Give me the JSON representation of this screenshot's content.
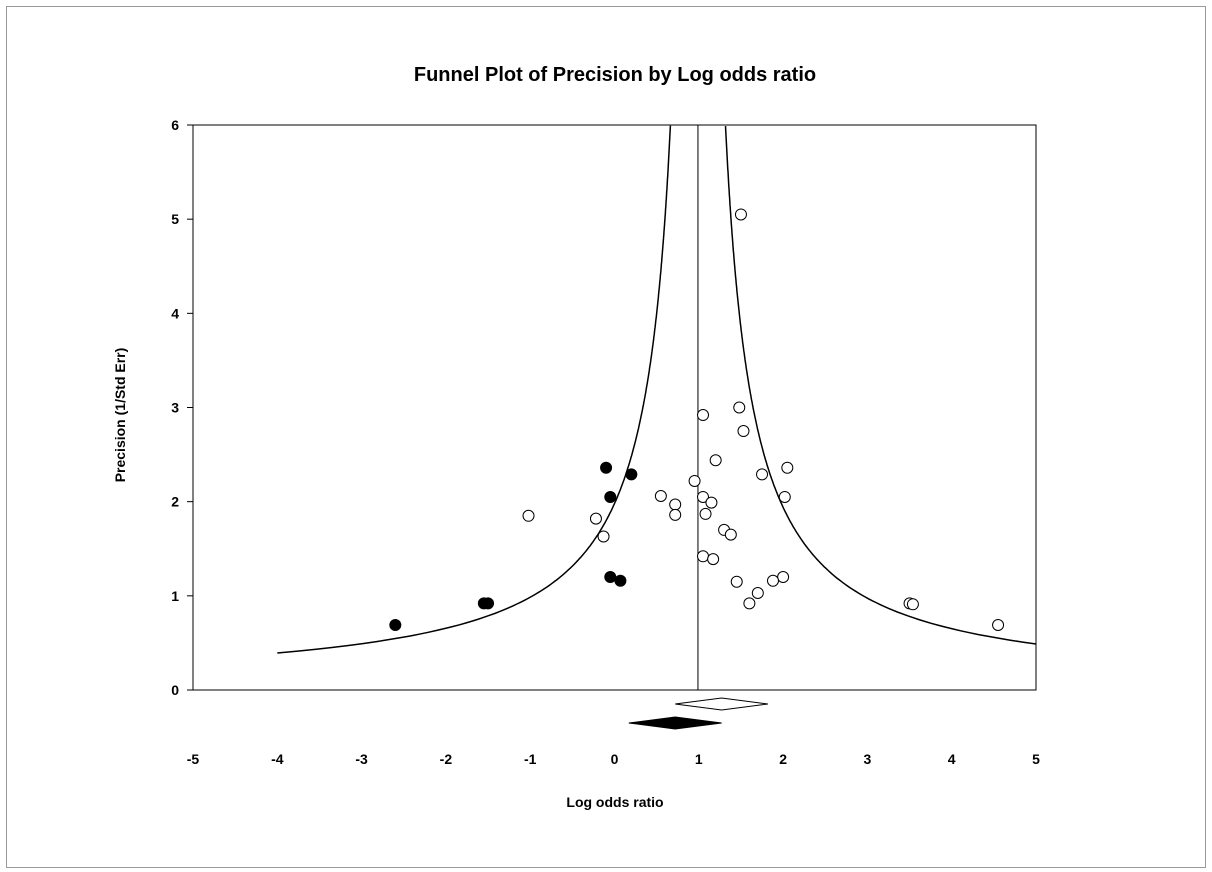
{
  "chart_data": {
    "type": "scatter",
    "title": "Funnel Plot of Precision by Log odds ratio",
    "xlabel": "Log odds ratio",
    "ylabel": "Precision (1/Std Err)",
    "xlim": [
      -5,
      5
    ],
    "ylim": [
      0,
      6
    ],
    "x_ticks": [
      "-5",
      "-4",
      "-3",
      "-2",
      "-1",
      "0",
      "1",
      "2",
      "3",
      "4",
      "5"
    ],
    "y_ticks": [
      "0",
      "1",
      "2",
      "3",
      "4",
      "5",
      "6"
    ],
    "grid": false,
    "legend": "none",
    "center_line_x": 0.99,
    "funnel_bound": 1.96,
    "series": [
      {
        "marker": "open-circle",
        "points": [
          [
            1.5,
            5.05
          ],
          [
            1.05,
            2.92
          ],
          [
            1.48,
            3.0
          ],
          [
            1.53,
            2.75
          ],
          [
            1.2,
            2.44
          ],
          [
            0.95,
            2.22
          ],
          [
            1.75,
            2.29
          ],
          [
            2.05,
            2.36
          ],
          [
            0.55,
            2.06
          ],
          [
            1.05,
            2.05
          ],
          [
            2.02,
            2.05
          ],
          [
            1.15,
            1.99
          ],
          [
            0.72,
            1.97
          ],
          [
            1.08,
            1.87
          ],
          [
            0.72,
            1.86
          ],
          [
            -1.02,
            1.85
          ],
          [
            -0.22,
            1.82
          ],
          [
            1.3,
            1.7
          ],
          [
            1.38,
            1.65
          ],
          [
            -0.13,
            1.63
          ],
          [
            1.05,
            1.42
          ],
          [
            1.17,
            1.39
          ],
          [
            2.0,
            1.2
          ],
          [
            1.88,
            1.16
          ],
          [
            1.45,
            1.15
          ],
          [
            1.7,
            1.03
          ],
          [
            1.6,
            0.92
          ],
          [
            3.5,
            0.92
          ],
          [
            3.54,
            0.91
          ],
          [
            4.55,
            0.69
          ]
        ]
      },
      {
        "marker": "filled-circle",
        "points": [
          [
            -0.1,
            2.36
          ],
          [
            0.2,
            2.29
          ],
          [
            -0.05,
            2.05
          ],
          [
            -0.05,
            1.2
          ],
          [
            0.07,
            1.16
          ],
          [
            -1.55,
            0.92
          ],
          [
            -1.5,
            0.92
          ],
          [
            -2.6,
            0.69
          ]
        ]
      }
    ],
    "summary_diamonds": [
      {
        "fill": "open",
        "center": 1.27,
        "half_width": 0.55,
        "row": 1
      },
      {
        "fill": "filled",
        "center": 0.72,
        "half_width": 0.55,
        "row": 2
      }
    ],
    "colors": {
      "marker": "#000000",
      "open_fill": "#ffffff",
      "line": "#000000"
    }
  }
}
